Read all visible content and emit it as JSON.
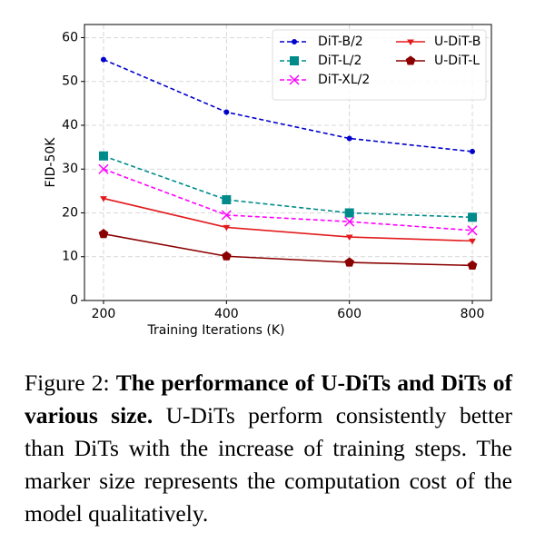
{
  "chart_data": {
    "type": "line",
    "xlabel": "Training Iterations (K)",
    "ylabel": "FID-50K",
    "x": [
      200,
      400,
      600,
      800
    ],
    "xlim": [
      169,
      831
    ],
    "xticks": [
      200,
      400,
      600,
      800
    ],
    "ylim": [
      0,
      63
    ],
    "yticks": [
      0,
      10,
      20,
      30,
      40,
      50,
      60
    ],
    "grid": true,
    "legend": "upper right",
    "series": [
      {
        "name": "DiT-B/2",
        "color": "#0000cc",
        "linestyle": "dashed",
        "marker": "dot",
        "values": [
          55,
          43,
          37,
          34
        ]
      },
      {
        "name": "DiT-L/2",
        "color": "#008b8b",
        "linestyle": "dashed",
        "marker": "square",
        "values": [
          33,
          23,
          20,
          19
        ]
      },
      {
        "name": "DiT-XL/2",
        "color": "#ff00ff",
        "linestyle": "dashed",
        "marker": "x",
        "values": [
          30,
          19.5,
          18,
          16
        ]
      },
      {
        "name": "U-DiT-B",
        "color": "#e31a1c",
        "linestyle": "solid",
        "marker": "triangle",
        "values": [
          23.3,
          16.7,
          14.5,
          13.6
        ]
      },
      {
        "name": "U-DiT-L",
        "color": "#8b0000",
        "linestyle": "solid",
        "marker": "pentagon",
        "values": [
          15.2,
          10.1,
          8.7,
          8.0
        ]
      }
    ]
  },
  "caption": {
    "label": "Figure 2:",
    "title": "The performance of U-DiTs and DiTs of various size.",
    "text": "U-DiTs perform consistently better than DiTs with the increase of training steps. The marker size represents the computation cost of the model qualitatively."
  }
}
